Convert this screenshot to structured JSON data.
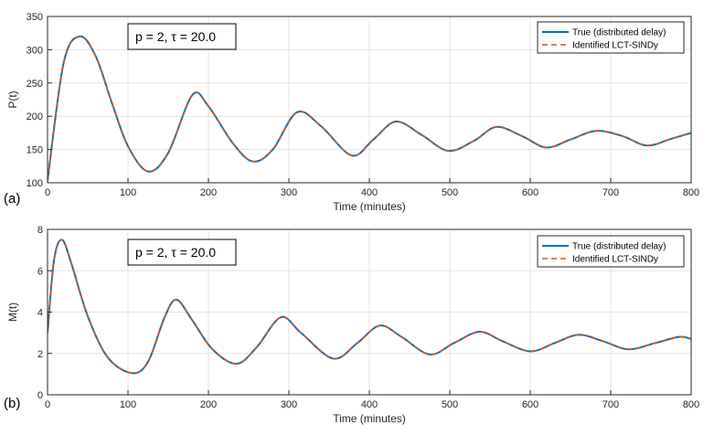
{
  "chart_data": [
    {
      "type": "line",
      "panel_label": "(a)",
      "xlabel": "Time (minutes)",
      "ylabel": "P(t)",
      "xlim": [
        0,
        800
      ],
      "ylim": [
        100,
        350
      ],
      "xticks": [
        0,
        100,
        200,
        300,
        400,
        500,
        600,
        700,
        800
      ],
      "yticks": [
        100,
        150,
        200,
        250,
        300,
        350
      ],
      "grid": true,
      "annotation": "p = 2, τ = 20.0",
      "legend_position": "top-right",
      "series": [
        {
          "name": "True (distributed delay)",
          "color": "#0072BD",
          "style": "solid",
          "x": [
            0,
            20,
            40,
            60,
            80,
            100,
            125,
            150,
            180,
            200,
            230,
            255,
            280,
            310,
            340,
            378,
            405,
            433,
            465,
            498,
            530,
            558,
            590,
            620,
            650,
            682,
            715,
            745,
            775,
            800
          ],
          "y": [
            103,
            280,
            320,
            290,
            220,
            155,
            117,
            145,
            232,
            215,
            160,
            132,
            150,
            206,
            185,
            141,
            165,
            192,
            172,
            148,
            163,
            184,
            170,
            153,
            165,
            178,
            170,
            156,
            166,
            175
          ]
        },
        {
          "name": "Identified LCT-SINDy",
          "color": "#D95319",
          "style": "dashed",
          "x": [
            0,
            20,
            40,
            60,
            80,
            100,
            125,
            150,
            180,
            200,
            230,
            255,
            280,
            310,
            340,
            378,
            405,
            433,
            465,
            498,
            530,
            558,
            590,
            620,
            650,
            682,
            715,
            745,
            775,
            800
          ],
          "y": [
            103,
            280,
            320,
            290,
            220,
            155,
            117,
            145,
            232,
            215,
            160,
            132,
            150,
            206,
            185,
            141,
            165,
            192,
            172,
            148,
            163,
            184,
            170,
            153,
            165,
            178,
            170,
            156,
            166,
            175
          ]
        }
      ]
    },
    {
      "type": "line",
      "panel_label": "(b)",
      "xlabel": "Time (minutes)",
      "ylabel": "M(t)",
      "xlim": [
        0,
        800
      ],
      "ylim": [
        0,
        8
      ],
      "xticks": [
        0,
        100,
        200,
        300,
        400,
        500,
        600,
        700,
        800
      ],
      "yticks": [
        0,
        2,
        4,
        6,
        8
      ],
      "grid": true,
      "annotation": "p = 2, τ = 20.0",
      "legend_position": "top-right",
      "series": [
        {
          "name": "True (distributed delay)",
          "color": "#0072BD",
          "style": "solid",
          "x": [
            0,
            8,
            18,
            30,
            50,
            75,
            105,
            125,
            145,
            160,
            180,
            205,
            235,
            260,
            290,
            315,
            355,
            385,
            413,
            440,
            475,
            505,
            537,
            565,
            600,
            630,
            660,
            690,
            722,
            755,
            785,
            800
          ],
          "y": [
            3,
            6.5,
            7.5,
            6.3,
            3.8,
            1.8,
            1.05,
            1.6,
            3.7,
            4.6,
            3.6,
            2.2,
            1.5,
            2.3,
            3.75,
            3.0,
            1.75,
            2.5,
            3.35,
            2.8,
            1.95,
            2.5,
            3.05,
            2.6,
            2.1,
            2.5,
            2.9,
            2.6,
            2.2,
            2.5,
            2.8,
            2.7
          ]
        },
        {
          "name": "Identified LCT-SINDy",
          "color": "#D95319",
          "style": "dashed",
          "x": [
            0,
            8,
            18,
            30,
            50,
            75,
            105,
            125,
            145,
            160,
            180,
            205,
            235,
            260,
            290,
            315,
            355,
            385,
            413,
            440,
            475,
            505,
            537,
            565,
            600,
            630,
            660,
            690,
            722,
            755,
            785,
            800
          ],
          "y": [
            3,
            6.5,
            7.5,
            6.3,
            3.8,
            1.8,
            1.05,
            1.6,
            3.7,
            4.6,
            3.6,
            2.2,
            1.5,
            2.3,
            3.75,
            3.0,
            1.75,
            2.5,
            3.35,
            2.8,
            1.95,
            2.5,
            3.05,
            2.6,
            2.1,
            2.5,
            2.9,
            2.6,
            2.2,
            2.5,
            2.8,
            2.7
          ]
        }
      ]
    }
  ]
}
